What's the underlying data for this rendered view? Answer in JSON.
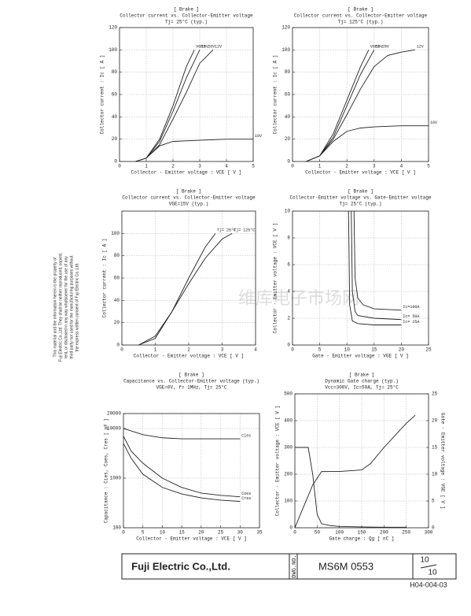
{
  "chart_data": [
    {
      "type": "line",
      "title": "[ Brake ]",
      "subtitle": "Collector current  vs.  Collector-Emitter voltage",
      "conditions": "Tj= 25°C    (typ.)",
      "x_label": "Collector - Emitter voltage : VCE [ V ]",
      "y_label": "Collector current : Ic [ A ]",
      "xlim": [
        0,
        5
      ],
      "xticks": [
        0,
        1,
        2,
        3,
        4,
        5
      ],
      "ylim": [
        0,
        120
      ],
      "yticks": [
        0,
        20,
        40,
        60,
        80,
        100,
        120
      ],
      "grid": true,
      "color": "#222222",
      "series": [
        {
          "name": "VGE= 20V",
          "x": [
            0.6,
            1,
            1.5,
            2,
            2.5,
            2.8
          ],
          "values": [
            0,
            3,
            20,
            50,
            85,
            100
          ]
        },
        {
          "name": "15V",
          "x": [
            0.6,
            1,
            1.5,
            2,
            2.5,
            3
          ],
          "values": [
            0,
            3,
            18,
            45,
            75,
            100
          ]
        },
        {
          "name": "12V",
          "x": [
            0.6,
            1,
            1.5,
            2,
            2.5,
            3,
            3.5
          ],
          "values": [
            0,
            3,
            15,
            38,
            62,
            88,
            100
          ]
        },
        {
          "name": "10V",
          "x": [
            0.6,
            1,
            1.5,
            2,
            3,
            4,
            5
          ],
          "values": [
            0,
            3,
            14,
            18,
            19,
            20,
            20
          ]
        }
      ]
    },
    {
      "type": "line",
      "title": "[ Brake ]",
      "subtitle": "Collector current  vs.  Collector-Emitter voltage",
      "conditions": "Tj= 125°C    (typ.)",
      "x_label": "Collector - Emitter voltage : VCE [ V ]",
      "y_label": "Collector current : Ic [ A ]",
      "xlim": [
        0,
        5
      ],
      "xticks": [
        0,
        1,
        2,
        3,
        4,
        5
      ],
      "ylim": [
        0,
        120
      ],
      "yticks": [
        0,
        20,
        40,
        60,
        80,
        100,
        120
      ],
      "grid": true,
      "color": "#222222",
      "series": [
        {
          "name": "VGE= 20V",
          "x": [
            0.5,
            1,
            1.5,
            2,
            2.5,
            2.8
          ],
          "values": [
            0,
            5,
            25,
            55,
            85,
            100
          ]
        },
        {
          "name": "15V",
          "x": [
            0.5,
            1,
            1.5,
            2,
            2.5,
            3
          ],
          "values": [
            0,
            5,
            22,
            50,
            78,
            100
          ]
        },
        {
          "name": "12V",
          "x": [
            0.5,
            1,
            1.5,
            2,
            2.5,
            3,
            3.5,
            4,
            4.5
          ],
          "values": [
            0,
            5,
            20,
            42,
            65,
            85,
            95,
            98,
            100
          ]
        },
        {
          "name": "10V",
          "x": [
            0.5,
            1,
            1.5,
            2,
            2.5,
            3,
            4,
            5
          ],
          "values": [
            0,
            5,
            18,
            27,
            30,
            31,
            32,
            32
          ]
        }
      ]
    },
    {
      "type": "line",
      "title": "[ Brake ]",
      "subtitle": "Collector current  vs.  Collector-Emitter voltage",
      "conditions": "VGE=15V    (typ.)",
      "x_label": "Collector - Emitter voltage : VCE [ V ]",
      "y_label": "Collector current : Ic [ A ]",
      "xlim": [
        0,
        4
      ],
      "xticks": [
        0,
        1,
        2,
        3,
        4
      ],
      "ylim": [
        0,
        120
      ],
      "yticks": [
        0,
        20,
        40,
        60,
        80,
        100
      ],
      "grid": true,
      "color": "#222222",
      "series": [
        {
          "name": "Tj= 25°C",
          "x": [
            0.5,
            1,
            1.5,
            2,
            2.5,
            2.8
          ],
          "values": [
            0,
            6,
            30,
            60,
            88,
            100
          ]
        },
        {
          "name": "Tj= 125°C",
          "x": [
            0.5,
            1,
            1.5,
            2,
            2.5,
            3,
            3.3
          ],
          "values": [
            0,
            8,
            30,
            55,
            78,
            95,
            100
          ]
        }
      ]
    },
    {
      "type": "line",
      "title": "[ Brake ]",
      "subtitle": "Collector-Emitter voltage  vs.  Gate-Emitter voltage",
      "conditions": "Tj= 25°C    (typ.)",
      "x_label": "Gate - Emitter voltage : VGE [ V ]",
      "y_label": "Collector - Emitter voltage : VCE [ V ]",
      "xlim": [
        0,
        25
      ],
      "xticks": [
        0,
        5,
        10,
        15,
        20,
        25
      ],
      "ylim": [
        0,
        10
      ],
      "yticks": [
        0,
        2,
        4,
        6,
        8,
        10
      ],
      "grid": true,
      "color": "#222222",
      "series": [
        {
          "name": "Ic=100A",
          "x": [
            11.3,
            11.5,
            12,
            13,
            15,
            20
          ],
          "values": [
            10,
            5,
            3.5,
            3,
            2.7,
            2.6
          ]
        },
        {
          "name": "Ic= 50A",
          "x": [
            10.8,
            11,
            11.5,
            12,
            15,
            20
          ],
          "values": [
            10,
            4,
            2.5,
            2.2,
            2,
            1.9
          ]
        },
        {
          "name": "Ic= 25A",
          "x": [
            10.3,
            10.5,
            11,
            12,
            15,
            20
          ],
          "values": [
            10,
            3,
            1.8,
            1.6,
            1.5,
            1.5
          ]
        }
      ]
    },
    {
      "type": "line",
      "title": "[ Brake ]",
      "subtitle": "Capacitance  vs.  Collector-Emitter voltage  (typ.)",
      "conditions": "VGE=0V,  f= 1MHz,  Tj= 25°C",
      "x_label": "Collector - Emitter voltage : VCE [ V ]",
      "y_label": "Capacitance : Cies, Coes, Cres [ pF ]",
      "xlim": [
        0,
        35
      ],
      "xticks": [
        0,
        5,
        10,
        15,
        20,
        25,
        30,
        35
      ],
      "ylim": [
        100,
        20000
      ],
      "yticks": [
        100,
        1000,
        10000,
        20000
      ],
      "log_y": true,
      "grid": true,
      "color": "#222222",
      "series": [
        {
          "name": "Cies",
          "x": [
            0,
            5,
            10,
            15,
            20,
            25,
            30
          ],
          "values": [
            10000,
            7500,
            6500,
            6200,
            6200,
            6200,
            6200
          ]
        },
        {
          "name": "Coes",
          "x": [
            0,
            2,
            5,
            10,
            15,
            20,
            25,
            30
          ],
          "values": [
            7000,
            3500,
            2000,
            1000,
            650,
            500,
            450,
            420
          ]
        },
        {
          "name": "Cres",
          "x": [
            0,
            2,
            5,
            10,
            15,
            20,
            25,
            30
          ],
          "values": [
            5000,
            2500,
            1200,
            650,
            480,
            400,
            360,
            340
          ]
        }
      ]
    },
    {
      "type": "line",
      "title": "[ Brake ]",
      "subtitle": "Dynamic Gate charge  (typ.)",
      "conditions": "Vcc=300V,  Ic=50A,  Tj= 25°C",
      "x_label": "Gate charge : Qg [ nC ]",
      "y_label": "Collector - Emitter voltage : VCE [ V ]",
      "y2_label": "Gate - Emitter voltage : VGE [ V ]",
      "xlim": [
        0,
        300
      ],
      "xticks": [
        0,
        50,
        100,
        150,
        200,
        250,
        300
      ],
      "ylim": [
        0,
        500
      ],
      "yticks": [
        0,
        100,
        200,
        300,
        400,
        500
      ],
      "y2lim": [
        0,
        25
      ],
      "y2ticks": [
        0,
        5,
        10,
        15,
        20,
        25
      ],
      "grid": true,
      "color": "#222222",
      "series": [
        {
          "x": [
            0,
            30,
            40,
            50,
            60,
            80,
            100,
            150,
            200,
            250
          ],
          "values": [
            300,
            300,
            200,
            50,
            15,
            8,
            5,
            3,
            2,
            2
          ]
        },
        {
          "axis": "y2",
          "x": [
            0,
            40,
            60,
            100,
            150,
            170,
            200,
            250,
            270
          ],
          "values": [
            0,
            8,
            10.5,
            10.5,
            10.8,
            12,
            15,
            19.5,
            21
          ]
        }
      ]
    }
  ],
  "side_note": [
    "This material and the information herein is the property of",
    "Fuji Electric Co.,Ltd. They shall be neither reproduced, copied,",
    "lent, or disclosed in any way whatsoever for the use of any",
    "third party nor used for the manufacturing purposes without",
    "the express written consent of Fuji Electric Co.,Ltd."
  ],
  "watermark": "维库电子市场网",
  "footer": {
    "company": "Fuji Electric Co.,Ltd.",
    "dwg_label": "DWG.NO.",
    "dwg_no": "MS6M 0553",
    "page": "10",
    "pages": "10",
    "form": "H04-004-03"
  }
}
